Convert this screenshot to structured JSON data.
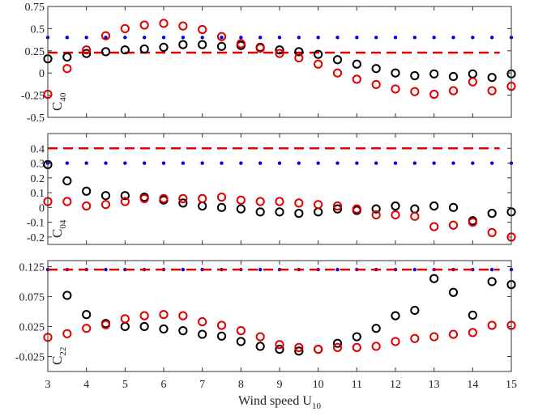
{
  "chart_data": [
    {
      "type": "scatter",
      "panel_label": "C",
      "panel_label_sub": "40",
      "xlim": [
        3,
        15
      ],
      "ylim": [
        -0.5,
        0.75
      ],
      "yticks": [
        "0.75",
        "0.5",
        "0.25",
        "0",
        "-0.25",
        "-0.5"
      ],
      "ytick_values": [
        0.75,
        0.5,
        0.25,
        0,
        -0.25,
        -0.5
      ],
      "reference_lines": [
        {
          "style": "dashed",
          "color": "#e00000",
          "y": 0.23,
          "x_range": [
            3,
            14.7
          ]
        },
        {
          "style": "dotted",
          "color": "#0000e0",
          "y": 0.4,
          "x_range": [
            3,
            15
          ]
        }
      ],
      "series": [
        {
          "color": "#000000",
          "x": [
            3,
            3.5,
            4,
            4.5,
            5,
            5.5,
            6,
            6.5,
            7,
            7.5,
            8,
            8.5,
            9,
            9.5,
            10,
            10.5,
            11,
            11.5,
            12,
            12.5,
            13,
            13.5,
            14,
            14.5,
            15
          ],
          "y": [
            0.16,
            0.18,
            0.22,
            0.24,
            0.26,
            0.27,
            0.29,
            0.32,
            0.32,
            0.3,
            0.31,
            0.29,
            0.26,
            0.24,
            0.21,
            0.15,
            0.1,
            0.05,
            0.0,
            -0.03,
            -0.01,
            -0.04,
            -0.01,
            -0.05,
            -0.01
          ]
        },
        {
          "color": "#e00000",
          "x": [
            3,
            3.5,
            4,
            4.5,
            5,
            5.5,
            6,
            6.5,
            7,
            7.5,
            8,
            8.5,
            9,
            9.5,
            10,
            10.5,
            11,
            11.5,
            12,
            12.5,
            13,
            13.5,
            14,
            14.5,
            15
          ],
          "y": [
            -0.24,
            0.05,
            0.26,
            0.42,
            0.5,
            0.54,
            0.56,
            0.53,
            0.49,
            0.41,
            0.33,
            0.28,
            0.22,
            0.17,
            0.1,
            0.0,
            -0.07,
            -0.13,
            -0.18,
            -0.21,
            -0.24,
            -0.2,
            -0.1,
            -0.2,
            -0.15
          ]
        }
      ]
    },
    {
      "type": "scatter",
      "panel_label": "C",
      "panel_label_sub": "04",
      "xlim": [
        3,
        15
      ],
      "ylim": [
        -0.25,
        0.5
      ],
      "yticks": [
        "0.4",
        "0.3",
        "0.2",
        "0.1",
        "0",
        "-0.1",
        "-0.2"
      ],
      "ytick_values": [
        0.4,
        0.3,
        0.2,
        0.1,
        0,
        -0.1,
        -0.2
      ],
      "reference_lines": [
        {
          "style": "dashed",
          "color": "#e00000",
          "y": 0.4,
          "x_range": [
            3,
            14.7
          ]
        },
        {
          "style": "dotted",
          "color": "#0000e0",
          "y": 0.3,
          "x_range": [
            3,
            15
          ]
        }
      ],
      "series": [
        {
          "color": "#000000",
          "x": [
            3,
            3.5,
            4,
            4.5,
            5,
            5.5,
            6,
            6.5,
            7,
            7.5,
            8,
            8.5,
            9,
            9.5,
            10,
            10.5,
            11,
            11.5,
            12,
            12.5,
            13,
            13.5,
            14,
            14.5,
            15
          ],
          "y": [
            0.29,
            0.18,
            0.11,
            0.08,
            0.08,
            0.07,
            0.05,
            0.03,
            0.01,
            0.0,
            -0.01,
            -0.03,
            -0.03,
            -0.04,
            -0.03,
            -0.01,
            -0.02,
            -0.01,
            0.01,
            -0.01,
            0.01,
            0.0,
            -0.09,
            -0.04,
            -0.03
          ]
        },
        {
          "color": "#e00000",
          "x": [
            3,
            3.5,
            4,
            4.5,
            5,
            5.5,
            6,
            6.5,
            7,
            7.5,
            8,
            8.5,
            9,
            9.5,
            10,
            10.5,
            11,
            11.5,
            12,
            12.5,
            13,
            13.5,
            14,
            14.5,
            15
          ],
          "y": [
            0.04,
            0.04,
            0.01,
            0.02,
            0.04,
            0.06,
            0.06,
            0.06,
            0.06,
            0.07,
            0.05,
            0.04,
            0.04,
            0.03,
            0.02,
            0.01,
            -0.01,
            -0.05,
            -0.05,
            -0.06,
            -0.13,
            -0.12,
            -0.1,
            -0.17,
            -0.2
          ]
        }
      ]
    },
    {
      "type": "scatter",
      "panel_label": "C",
      "panel_label_sub": "22",
      "xlim": [
        3,
        15
      ],
      "ylim": [
        -0.05,
        0.135
      ],
      "yticks": [
        "0.125",
        "0.075",
        "0.025",
        "-0.025"
      ],
      "ytick_values": [
        0.125,
        0.075,
        0.025,
        -0.025
      ],
      "xticks": [
        "3",
        "4",
        "5",
        "6",
        "7",
        "8",
        "9",
        "10",
        "11",
        "12",
        "13",
        "14",
        "15"
      ],
      "xtick_values": [
        3,
        4,
        5,
        6,
        7,
        8,
        9,
        10,
        11,
        12,
        13,
        14,
        15
      ],
      "reference_lines": [
        {
          "style": "dashed",
          "color": "#e00000",
          "y": 0.12,
          "x_range": [
            3,
            14.7
          ]
        },
        {
          "style": "dotted",
          "color": "#0000e0",
          "y": 0.12,
          "x_range": [
            3,
            15
          ]
        }
      ],
      "series": [
        {
          "color": "#000000",
          "x": [
            3.5,
            4,
            4.5,
            5,
            5.5,
            6,
            6.5,
            7,
            7.5,
            8,
            8.5,
            9,
            9.5,
            10,
            10.5,
            11,
            11.5,
            12,
            12.5,
            13,
            13.5,
            14,
            14.5,
            15
          ],
          "y": [
            0.077,
            0.045,
            0.03,
            0.025,
            0.025,
            0.021,
            0.018,
            0.012,
            0.009,
            0.0,
            -0.008,
            -0.013,
            -0.016,
            -0.013,
            -0.003,
            0.008,
            0.022,
            0.043,
            0.052,
            0.105,
            0.082,
            0.044,
            0.1,
            0.095
          ]
        },
        {
          "color": "#e00000",
          "x": [
            3,
            3.5,
            4,
            4.5,
            5,
            5.5,
            6,
            6.5,
            7,
            7.5,
            8,
            8.5,
            9,
            9.5,
            10,
            10.5,
            11,
            11.5,
            12,
            12.5,
            13,
            13.5,
            14,
            14.5,
            15
          ],
          "y": [
            0.007,
            0.013,
            0.022,
            0.028,
            0.038,
            0.043,
            0.045,
            0.043,
            0.033,
            0.027,
            0.018,
            0.008,
            -0.005,
            -0.01,
            -0.013,
            -0.01,
            -0.01,
            -0.008,
            0.0,
            0.005,
            0.008,
            0.012,
            0.015,
            0.027,
            0.027
          ]
        }
      ]
    }
  ],
  "xlabel_main": "Wind speed U",
  "xlabel_sub": "10"
}
